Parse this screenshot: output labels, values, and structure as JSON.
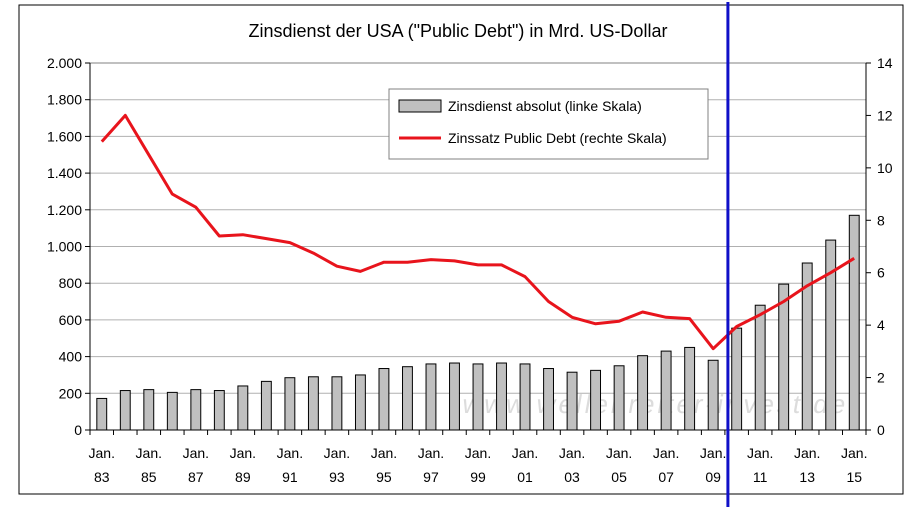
{
  "chart_data": {
    "type": "bar",
    "title": "Zinsdienst der USA (\"Public Debt\") in Mrd. US-Dollar",
    "watermark": "www.wellenreiter-invest.de",
    "x": [
      "1983",
      "1984",
      "1985",
      "1986",
      "1987",
      "1988",
      "1989",
      "1990",
      "1991",
      "1992",
      "1993",
      "1994",
      "1995",
      "1996",
      "1997",
      "1998",
      "1999",
      "2000",
      "2001",
      "2002",
      "2003",
      "2004",
      "2005",
      "2006",
      "2007",
      "2008",
      "2009",
      "2010",
      "2011",
      "2012",
      "2013",
      "2014",
      "2015"
    ],
    "x_tick_labels": [
      {
        "top": "Jan.",
        "bottom": "83"
      },
      {
        "top": "Jan.",
        "bottom": "85"
      },
      {
        "top": "Jan.",
        "bottom": "87"
      },
      {
        "top": "Jan.",
        "bottom": "89"
      },
      {
        "top": "Jan.",
        "bottom": "91"
      },
      {
        "top": "Jan.",
        "bottom": "93"
      },
      {
        "top": "Jan.",
        "bottom": "95"
      },
      {
        "top": "Jan.",
        "bottom": "97"
      },
      {
        "top": "Jan.",
        "bottom": "99"
      },
      {
        "top": "Jan.",
        "bottom": "01"
      },
      {
        "top": "Jan.",
        "bottom": "03"
      },
      {
        "top": "Jan.",
        "bottom": "05"
      },
      {
        "top": "Jan.",
        "bottom": "07"
      },
      {
        "top": "Jan.",
        "bottom": "09"
      },
      {
        "top": "Jan.",
        "bottom": "11"
      },
      {
        "top": "Jan.",
        "bottom": "13"
      },
      {
        "top": "Jan.",
        "bottom": "15"
      }
    ],
    "y_left": {
      "ylim": [
        0,
        2000
      ],
      "ticks": [
        0,
        200,
        400,
        600,
        800,
        1000,
        1200,
        1400,
        1600,
        1800,
        2000
      ],
      "tick_labels": [
        "0",
        "200",
        "400",
        "600",
        "800",
        "1.000",
        "1.200",
        "1.400",
        "1.600",
        "1.800",
        "2.000"
      ]
    },
    "y_right": {
      "ylim": [
        0,
        14
      ],
      "ticks": [
        0,
        2,
        4,
        6,
        8,
        10,
        12,
        14
      ],
      "tick_labels": [
        "0",
        "2",
        "4",
        "6",
        "8",
        "10",
        "12",
        "14"
      ]
    },
    "series": [
      {
        "name": "Zinsdienst absolut (linke Skala)",
        "kind": "bar",
        "axis": "left",
        "color": "#c0c0c0",
        "values": [
          172,
          215,
          220,
          205,
          220,
          215,
          240,
          265,
          285,
          290,
          290,
          300,
          335,
          345,
          360,
          365,
          360,
          365,
          360,
          335,
          315,
          325,
          350,
          405,
          430,
          450,
          380,
          555,
          680,
          795,
          910,
          1035,
          1170
        ]
      },
      {
        "name": "Zinssatz Public Debt (rechte Skala)",
        "kind": "line",
        "axis": "right",
        "color": "#e8141c",
        "values": [
          11.0,
          12.0,
          10.5,
          9.0,
          8.5,
          7.4,
          7.45,
          7.3,
          7.15,
          6.75,
          6.25,
          6.05,
          6.4,
          6.4,
          6.5,
          6.45,
          6.3,
          6.3,
          5.85,
          4.9,
          4.3,
          4.05,
          4.15,
          4.5,
          4.3,
          4.25,
          3.1,
          3.95,
          4.4,
          4.9,
          5.5,
          6.0,
          6.55
        ]
      }
    ],
    "marker_line": {
      "color": "#1010c8",
      "position_x": "2009.7"
    },
    "legend": {
      "placement": "top-center"
    },
    "grid": {
      "horizontal": true
    }
  }
}
